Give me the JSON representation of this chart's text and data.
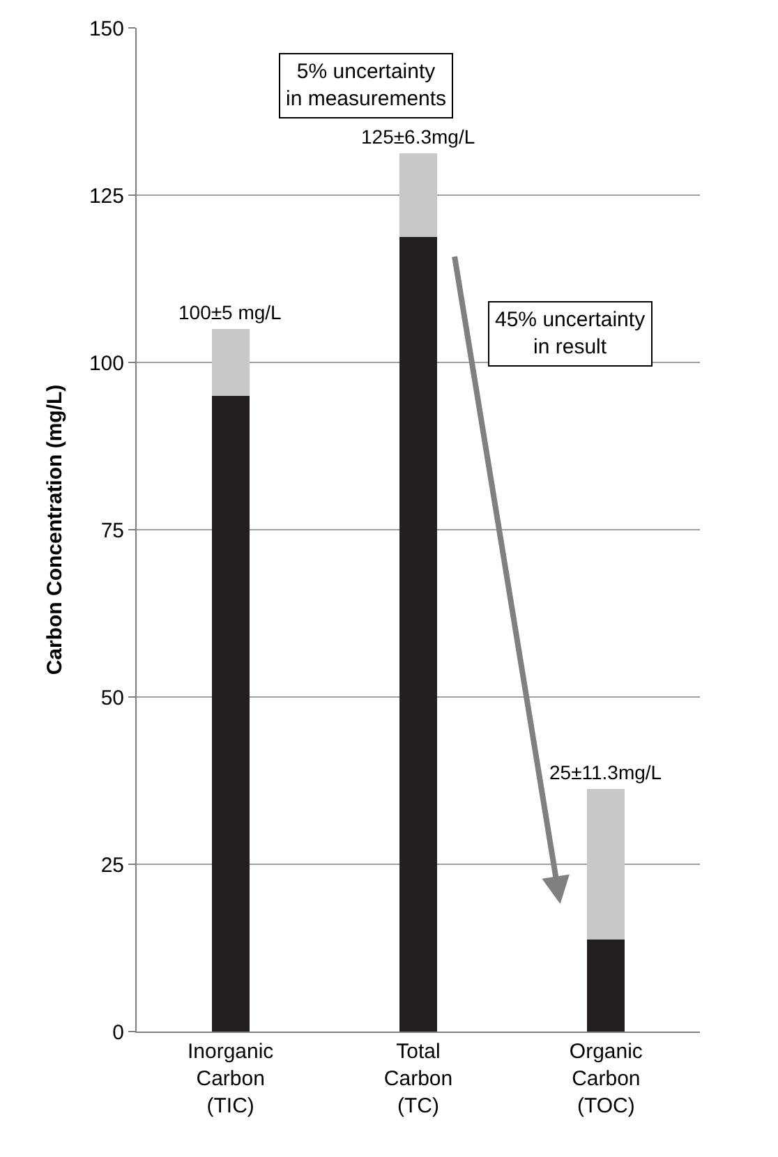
{
  "chart_data": {
    "type": "bar",
    "stacked": true,
    "ylabel": "Carbon Concentration (mg/L)",
    "categories": [
      "Inorganic\nCarbon\n(TIC)",
      "Total\nCarbon\n(TC)",
      "Organic\nCarbon\n(TOC)"
    ],
    "series": [
      {
        "color": "#231f20",
        "values": [
          95,
          118.7,
          13.7
        ]
      },
      {
        "color": "#c8c8c8",
        "values": [
          10,
          12.6,
          22.6
        ]
      }
    ],
    "ylim": [
      0,
      150
    ],
    "yticks": [
      0,
      25,
      50,
      75,
      100,
      125,
      150
    ],
    "grid": "y",
    "annotations": [
      {
        "text": "100±5 mg/L",
        "x": "Inorganic\nCarbon\n(TIC)",
        "y": 105
      },
      {
        "text": "125±6.3mg/L",
        "x": "Total\nCarbon\n(TC)",
        "y": 131.3
      },
      {
        "text": "25±11.3mg/L",
        "x": "Organic\nCarbon\n(TOC)",
        "y": 36.3
      },
      "5% uncertainty\nin measurements",
      "45% uncertainty\nin result"
    ]
  }
}
